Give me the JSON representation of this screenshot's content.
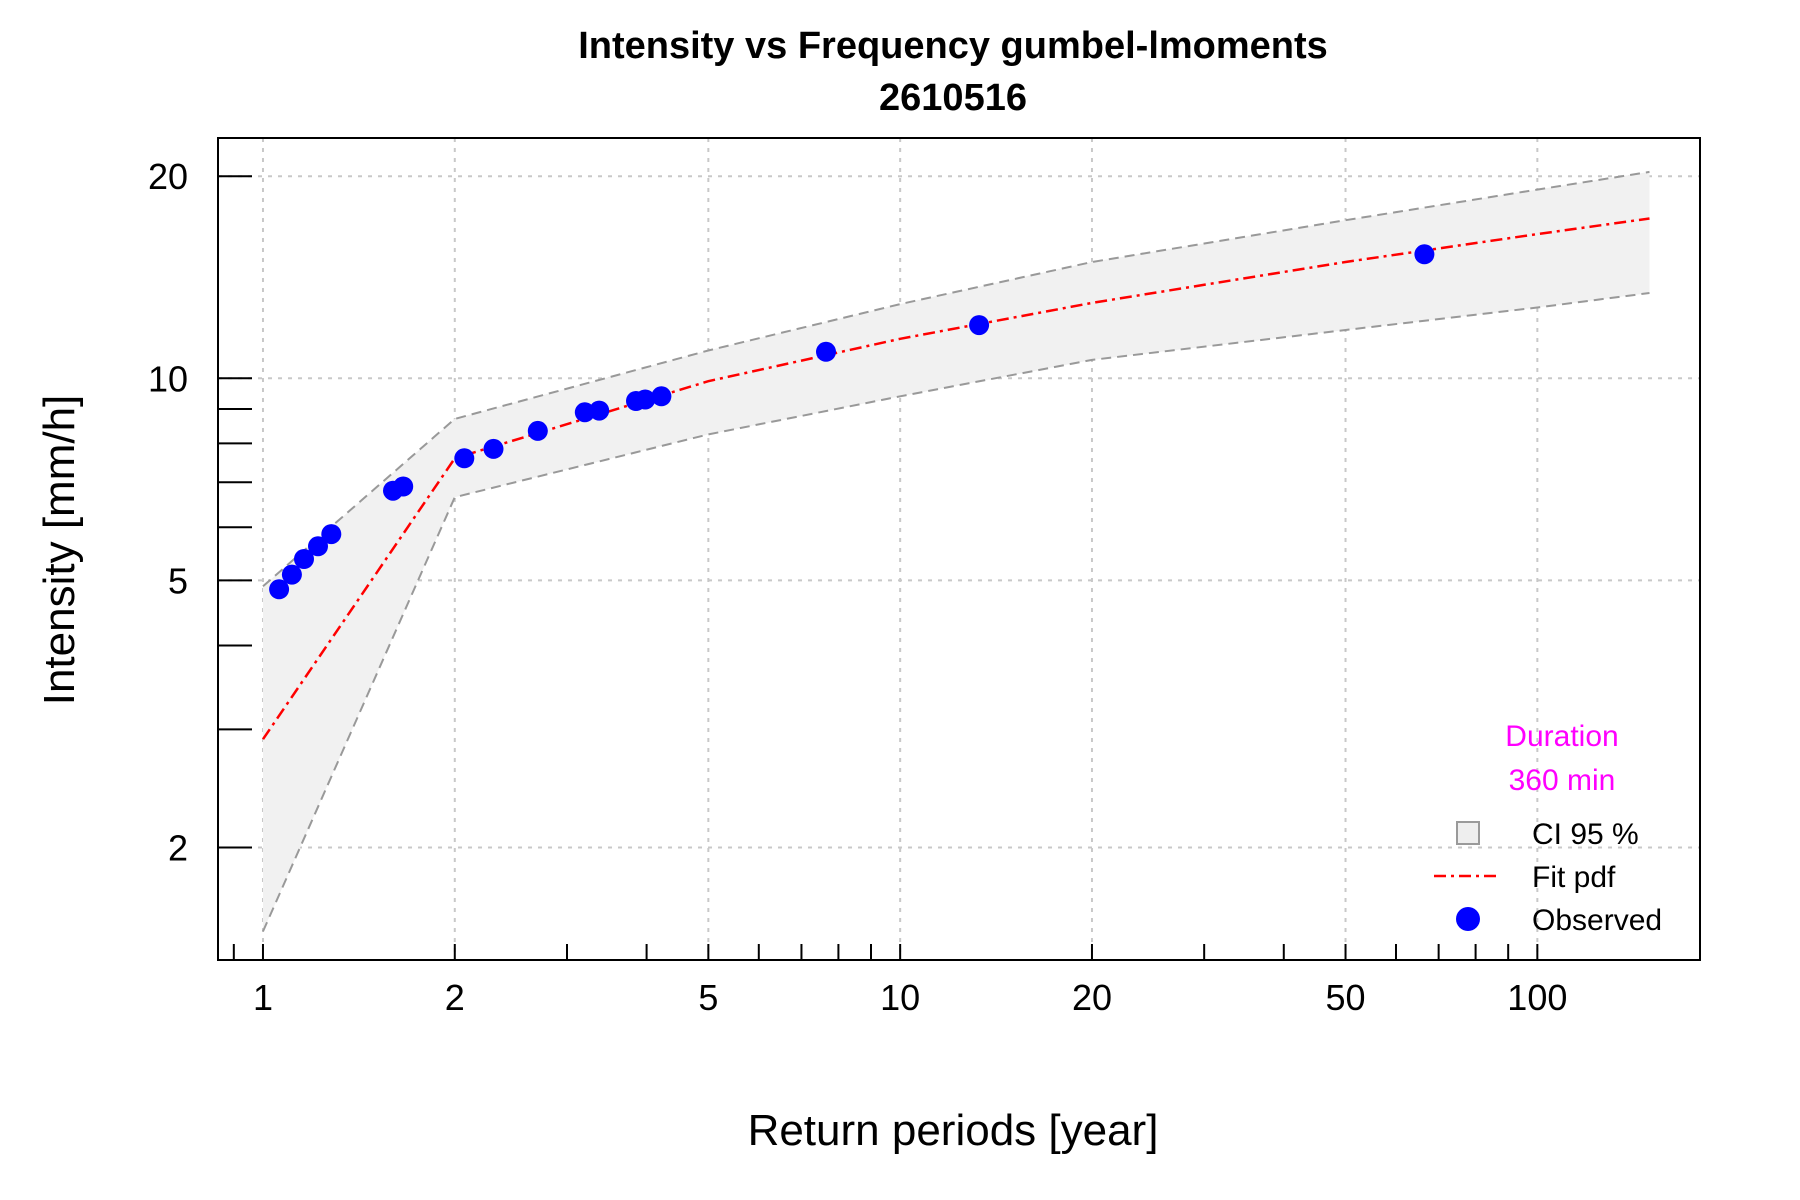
{
  "chart_data": {
    "type": "scatter",
    "title": "Intensity vs Frequency gumbel-lmoments",
    "subtitle": "2610516",
    "xlabel": "Return periods [year]",
    "ylabel": "Intensity [mm/h]",
    "x_scale": "log",
    "y_scale": "log",
    "xlim": [
      0.85,
      180
    ],
    "ylim": [
      1.36,
      22.8
    ],
    "grid": true,
    "x_ticks": [
      1,
      2,
      5,
      10,
      20,
      50,
      100
    ],
    "x_tick_labels": [
      "1",
      "2",
      "5",
      "10",
      "20",
      "50",
      "100"
    ],
    "x_minor_ticks": [
      0.9,
      3,
      4,
      6,
      7,
      8,
      9,
      30,
      40,
      60,
      70,
      80,
      90
    ],
    "y_ticks": [
      2,
      5,
      10,
      20
    ],
    "y_tick_labels": [
      "2",
      "5",
      "10",
      "20"
    ],
    "y_minor_ticks": [
      3,
      4,
      6,
      7,
      8,
      9
    ],
    "annotation": {
      "line1": "Duration",
      "line2": "360 min",
      "color": "#ff00ff"
    },
    "legend": {
      "position": "bottom-right",
      "entries": [
        {
          "label": "CI 95 %",
          "kind": "band"
        },
        {
          "label": "Fit pdf",
          "kind": "line"
        },
        {
          "label": "Observed",
          "kind": "point"
        }
      ]
    },
    "series": [
      {
        "name": "Fit pdf",
        "color": "#ff0000",
        "x": [
          1.0,
          2.0,
          5.0,
          10.0,
          20.0,
          50.0,
          100.0,
          150.0
        ],
        "y": [
          2.9,
          7.6,
          9.9,
          11.45,
          12.95,
          14.9,
          16.4,
          17.3
        ]
      },
      {
        "name": "CI 95 % upper",
        "color": "#999999",
        "x": [
          1.0,
          2.0,
          5.0,
          10.0,
          20.0,
          50.0,
          100.0,
          150.0
        ],
        "y": [
          4.9,
          8.7,
          11.0,
          12.9,
          14.9,
          17.2,
          19.1,
          20.3
        ]
      },
      {
        "name": "CI 95 % lower",
        "color": "#999999",
        "x": [
          1.0,
          2.0,
          5.0,
          10.0,
          20.0,
          50.0,
          100.0,
          150.0
        ],
        "y": [
          1.5,
          6.65,
          8.25,
          9.4,
          10.65,
          11.8,
          12.75,
          13.4
        ]
      },
      {
        "name": "Observed",
        "color": "#0000ff",
        "x": [
          1.06,
          1.11,
          1.16,
          1.22,
          1.28,
          1.6,
          1.66,
          2.07,
          2.3,
          2.7,
          3.2,
          3.37,
          3.85,
          3.98,
          4.22,
          7.65,
          13.3,
          66.5
        ],
        "y": [
          4.85,
          5.1,
          5.38,
          5.62,
          5.86,
          6.8,
          6.9,
          7.6,
          7.85,
          8.35,
          8.9,
          8.95,
          9.25,
          9.3,
          9.4,
          10.95,
          12.0,
          15.3
        ]
      }
    ]
  }
}
